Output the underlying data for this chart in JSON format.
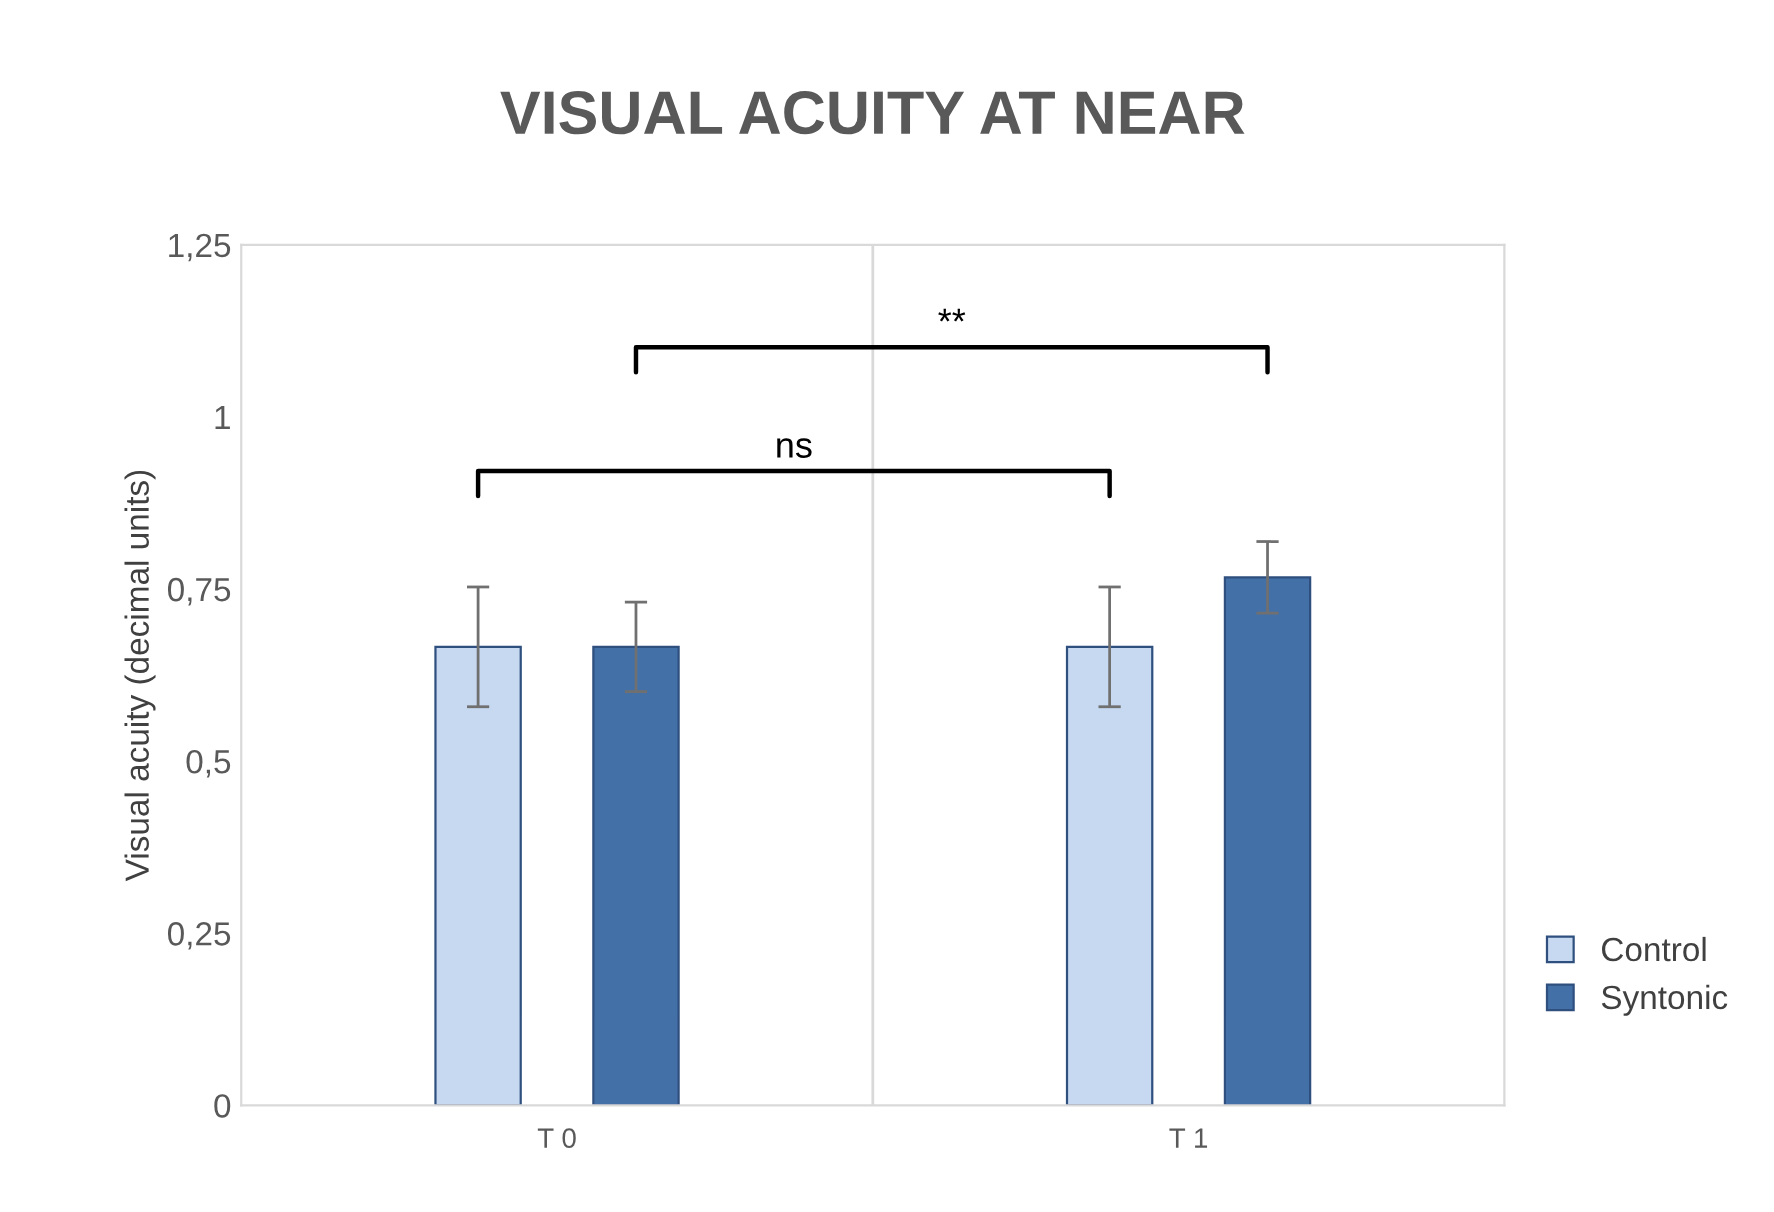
{
  "chart_data": {
    "type": "bar",
    "title": "VISUAL ACUITY AT NEAR",
    "ylabel": "Visual acuity (decimal units)",
    "categories": [
      "T 0",
      "T 1"
    ],
    "series": [
      {
        "name": "Control",
        "color": "#c6d9f1",
        "values": [
          0.666,
          0.666
        ],
        "errors": [
          0.087,
          0.087
        ]
      },
      {
        "name": "Syntonic",
        "color": "#4470a8",
        "values": [
          0.666,
          0.767
        ],
        "errors": [
          0.065,
          0.052
        ]
      }
    ],
    "ylim": [
      0,
      1.25
    ],
    "yticks": [
      0,
      {
        "value": 0.25,
        "label": "0,25"
      },
      {
        "value": 0.5,
        "label": "0,5"
      },
      {
        "value": 0.75,
        "label": "0,75"
      },
      1,
      {
        "value": 1.25,
        "label": "1,25"
      }
    ],
    "annotations": [
      "ns",
      "**"
    ],
    "grid": "x",
    "legend": "right"
  }
}
